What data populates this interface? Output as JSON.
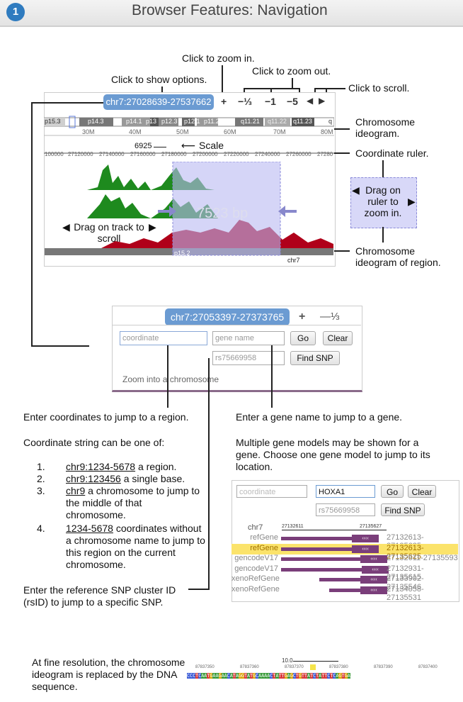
{
  "header": {
    "badge": "1",
    "title": "Browser Features: Navigation"
  },
  "callouts": {
    "zoom_in": "Click to zoom in.",
    "zoom_out": "Click to zoom out.",
    "show_options": "Click to show options.",
    "scroll": "Click to scroll.",
    "chrom_ideogram": "Chromosome ideogram.",
    "coord_ruler": "Coordinate ruler.",
    "drag_ruler": "Drag on ruler to zoom in.",
    "drag_track": "Drag on track to scroll",
    "chrom_region": "Chromosome ideogram of region.",
    "scale": "Scale"
  },
  "browser": {
    "position": "chr7:27028639-27537662",
    "zoom_buttons": [
      "+",
      "−⅓",
      "−1",
      "−5"
    ],
    "scroll_left": "◀",
    "scroll_right": "▶",
    "scale_value": "6925",
    "selection_text": "7523 bp",
    "ideo_bands": [
      "p15.3",
      "p14.3",
      "p14.1",
      "p13",
      "p12.3",
      "p12.1",
      "p11.2",
      "q11.21",
      "q11.22",
      "q11.23",
      "q"
    ],
    "mb_ticks": [
      "30M",
      "40M",
      "50M",
      "60M",
      "70M",
      "80M"
    ],
    "ruler_ticks": [
      "100000",
      "27120000",
      "27140000",
      "27160000",
      "27180000",
      "27200000",
      "27220000",
      "27240000",
      "27260000",
      "27280"
    ],
    "region_band": "p15.2",
    "region_chrom": "chr7",
    "colors": {
      "track_green": "#1e8a1e",
      "track_red": "#b0001a",
      "selection": "#b9b9f2",
      "pill": "#6b9bd2"
    }
  },
  "search_panel": {
    "position": "chr7:27053397-27373765",
    "zoom_plus": "+",
    "zoom_third": "—⅓",
    "coordinate_placeholder": "coordinate",
    "gene_placeholder": "gene name",
    "go": "Go",
    "clear": "Clear",
    "snp_value": "rs75669958",
    "find_snp": "Find SNP",
    "chrom_link": "Zoom into a chromosome"
  },
  "left_text": {
    "heading": "Enter coordinates to jump to a region.",
    "subheading": "Coordinate string can be one of:",
    "items": [
      {
        "num": "1.",
        "code": "chr9:1234-5678",
        "rest": " a region."
      },
      {
        "num": "2.",
        "code": "chr9:123456",
        "rest": " a single base."
      },
      {
        "num": "3.",
        "code": "chr9",
        "rest": " a chromosome to jump to the middle of that chromosome."
      },
      {
        "num": "4.",
        "code": "1234-5678",
        "rest": " coordinates without a chromosome name to jump to this region on the current chromosome."
      }
    ],
    "snp_note": "Enter the reference SNP cluster ID (rsID) to jump to a specific SNP."
  },
  "right_text": {
    "heading": "Enter a gene name to jump to a gene.",
    "body": "Multiple gene models may be shown for a gene. Choose one gene model to jump to its location."
  },
  "gene_panel": {
    "coordinate_placeholder": "coordinate",
    "gene_value": "HOXA1",
    "go": "Go",
    "clear": "Clear",
    "snp_value": "rs75669958",
    "find_snp": "Find SNP",
    "chrom": "chr7",
    "start": "27132611",
    "end": "27135627",
    "rows": [
      {
        "name": "refGene",
        "coords": "27132613-27135625",
        "highlight": false
      },
      {
        "name": "refGene",
        "coords": "27132613-27135625",
        "highlight": true
      },
      {
        "name": "gencodeV17",
        "coords": "27132611-27135593",
        "highlight": false
      },
      {
        "name": "gencodeV17",
        "coords": "27132931-27135615",
        "highlight": false
      },
      {
        "name": "xenoRefGene",
        "coords": "27133902-27135546",
        "highlight": false
      },
      {
        "name": "xenoRefGene",
        "coords": "27134058-27135531",
        "highlight": false
      }
    ]
  },
  "bottom": {
    "note": "At fine resolution, the chromosome ideogram is replaced by the DNA sequence.",
    "scale_value": "10.0",
    "coords": [
      "87837350",
      "87837360",
      "87837370",
      "87837380",
      "87837390",
      "87837400"
    ],
    "sequence": "CCCTCAATGAAGAACATAGGTATGCAAAACTATTGAGCTGTTATCTATTCTCAGTGA"
  }
}
